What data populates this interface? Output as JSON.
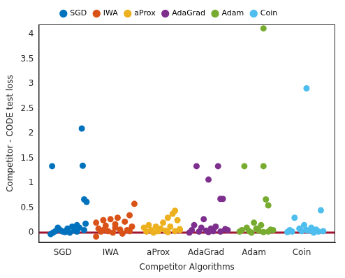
{
  "chart_data": {
    "type": "scatter",
    "x_label": "Competitor Algorithms",
    "y_label": "Competitor - CODE test loss",
    "xlim": [
      0.5,
      6.7
    ],
    "xticks": [
      {
        "value": 1,
        "label": "SGD"
      },
      {
        "value": 2,
        "label": "IWA"
      },
      {
        "value": 3,
        "label": "aProx"
      },
      {
        "value": 4,
        "label": "AdaGrad"
      },
      {
        "value": 5,
        "label": "Adam"
      },
      {
        "value": 6,
        "label": "Coin"
      }
    ],
    "ylim": [
      -0.2,
      4.2
    ],
    "yticks": [
      0,
      0.5,
      1,
      1.5,
      2,
      2.5,
      3,
      3.5,
      4
    ],
    "grid": false,
    "legend": "top",
    "marker": "circle",
    "reference_line": {
      "y": 0,
      "color": "#a2142f"
    },
    "series": [
      {
        "name": "SGD",
        "color": "#0072bd",
        "x": [
          0.78,
          1.42,
          1.4,
          1.45,
          1.5,
          1.48,
          1.3,
          1.2,
          1.1,
          0.95,
          0.85,
          1.0,
          0.75,
          1.15,
          1.25,
          1.35,
          0.9,
          1.05,
          1.3,
          1.45,
          0.8
        ],
        "values": [
          1.34,
          1.35,
          2.1,
          0.67,
          0.62,
          0.18,
          0.15,
          0.12,
          0.08,
          0.05,
          0.03,
          0.02,
          -0.03,
          0.0,
          0.04,
          0.1,
          0.1,
          0.01,
          0.02,
          0.05,
          0.0
        ]
      },
      {
        "name": "IWA",
        "color": "#d95319",
        "x": [
          2.5,
          2.4,
          2.15,
          2.0,
          1.85,
          2.3,
          1.7,
          2.1,
          1.9,
          2.45,
          1.75,
          2.2,
          2.35,
          1.95,
          1.8,
          2.05,
          2.25,
          1.7,
          2.4,
          2.1,
          1.85
        ],
        "values": [
          0.58,
          0.35,
          0.3,
          0.27,
          0.25,
          0.22,
          0.2,
          0.17,
          0.14,
          0.12,
          0.08,
          0.06,
          0.05,
          0.03,
          0.02,
          0.0,
          -0.02,
          -0.08,
          0.03,
          0.1,
          0.05
        ]
      },
      {
        "name": "aProx",
        "color": "#edb120",
        "x": [
          3.35,
          3.3,
          3.2,
          3.4,
          3.1,
          2.8,
          2.95,
          3.25,
          2.7,
          3.05,
          3.45,
          2.85,
          3.15,
          3.0,
          2.75,
          3.35,
          2.9,
          3.2,
          3.45
        ],
        "values": [
          0.44,
          0.38,
          0.3,
          0.25,
          0.2,
          0.15,
          0.12,
          0.12,
          0.1,
          0.08,
          0.07,
          0.05,
          0.04,
          0.03,
          0.02,
          0.03,
          0.0,
          0.01,
          0.05
        ]
      },
      {
        "name": "AdaGrad",
        "color": "#7e2f8e",
        "x": [
          3.8,
          4.25,
          4.05,
          4.3,
          4.35,
          3.95,
          3.75,
          4.2,
          3.9,
          4.1,
          4.4,
          3.7,
          4.0,
          4.15,
          3.85,
          4.3,
          3.65,
          4.45,
          4.05
        ],
        "values": [
          1.34,
          1.34,
          1.07,
          0.68,
          0.68,
          0.27,
          0.15,
          0.12,
          0.1,
          0.08,
          0.07,
          0.05,
          0.04,
          0.03,
          0.02,
          0.02,
          0.0,
          0.05,
          0.01
        ]
      },
      {
        "name": "Adam",
        "color": "#77ac30",
        "x": [
          5.2,
          4.8,
          5.2,
          5.25,
          5.3,
          5.0,
          5.15,
          4.85,
          5.05,
          5.35,
          4.75,
          5.1,
          4.9,
          5.3,
          5.4,
          4.95,
          5.2,
          4.7
        ],
        "values": [
          4.12,
          1.34,
          1.34,
          0.67,
          0.55,
          0.2,
          0.15,
          0.1,
          0.08,
          0.06,
          0.05,
          0.04,
          0.03,
          0.02,
          0.05,
          0.0,
          0.01,
          0.02
        ]
      },
      {
        "name": "Coin",
        "color": "#4dbeee",
        "x": [
          6.1,
          6.4,
          5.85,
          6.05,
          6.2,
          5.95,
          6.3,
          5.75,
          6.15,
          6.0,
          5.8,
          6.35,
          6.25,
          5.7,
          6.45,
          6.1
        ],
        "values": [
          2.91,
          0.45,
          0.3,
          0.15,
          0.1,
          0.08,
          0.06,
          0.05,
          0.04,
          0.03,
          0.02,
          0.02,
          0.0,
          0.01,
          0.03,
          0.05
        ]
      }
    ]
  }
}
